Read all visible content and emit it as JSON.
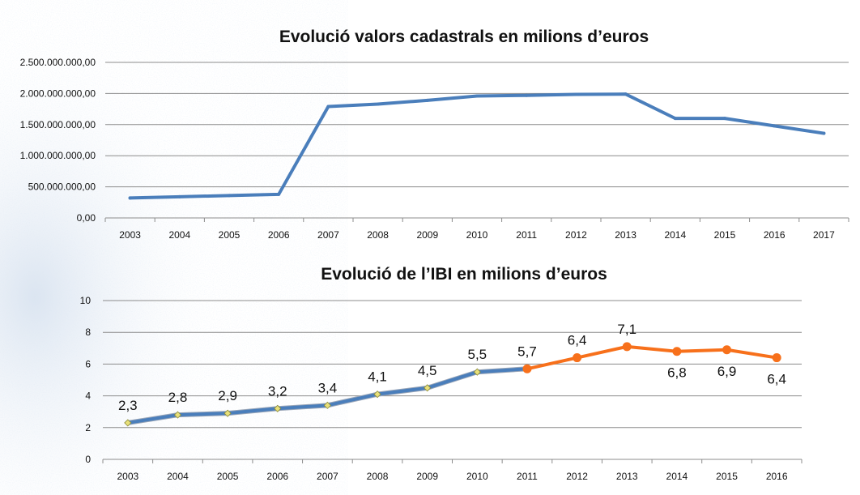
{
  "colors": {
    "series_blue": "#4A7EBB",
    "series_orange": "#F7701B",
    "marker_yellow": "#E8E07A",
    "gridline": "#8C8C8C",
    "background_tint": "#D6E3F1"
  },
  "chart_data": [
    {
      "type": "line",
      "title": "Evolució valors cadastrals en milions d’euros",
      "xlabel": "",
      "ylabel": "",
      "categories": [
        "2003",
        "2004",
        "2005",
        "2006",
        "2007",
        "2008",
        "2009",
        "2010",
        "2011",
        "2012",
        "2013",
        "2014",
        "2015",
        "2016",
        "2017"
      ],
      "series": [
        {
          "name": "Valors cadastrals",
          "color": "#4A7EBB",
          "values": [
            320000000,
            340000000,
            360000000,
            380000000,
            1790000000,
            1830000000,
            1890000000,
            1960000000,
            1970000000,
            1985000000,
            1990000000,
            1600000000,
            1600000000,
            1480000000,
            1360000000
          ]
        }
      ],
      "ylim": [
        0,
        2500000000
      ],
      "yticks": [
        0,
        500000000,
        1000000000,
        1500000000,
        2000000000,
        2500000000
      ],
      "ytick_labels": [
        "0,00",
        "500.000.000,00",
        "1.000.000.000,00",
        "1.500.000.000,00",
        "2.000.000.000,00",
        "2.500.000.000,00"
      ],
      "grid": true,
      "legend": "none"
    },
    {
      "type": "line",
      "title": "Evolució de l’IBI en milions d’euros",
      "xlabel": "",
      "ylabel": "",
      "categories": [
        "2003",
        "2004",
        "2005",
        "2006",
        "2007",
        "2008",
        "2009",
        "2010",
        "2011",
        "2012",
        "2013",
        "2014",
        "2015",
        "2016"
      ],
      "series": [
        {
          "name": "IBI",
          "values": [
            2.3,
            2.8,
            2.9,
            3.2,
            3.4,
            4.1,
            4.5,
            5.5,
            5.7,
            6.4,
            7.1,
            6.8,
            6.9,
            6.4
          ],
          "labels": [
            "2,3",
            "2,8",
            "2,9",
            "3,2",
            "3,4",
            "4,1",
            "4,5",
            "5,5",
            "5,7",
            "6,4",
            "7,1",
            "6,8",
            "6,9",
            "6,4"
          ],
          "label_positions": [
            "above",
            "above",
            "above",
            "above",
            "above",
            "above",
            "above",
            "above",
            "above",
            "above",
            "above",
            "below",
            "below",
            "below"
          ],
          "segments": [
            {
              "from": "2003",
              "to": "2011",
              "color": "#4A7EBB",
              "marker": "diamond-yellow"
            },
            {
              "from": "2011",
              "to": "2016",
              "color": "#F7701B",
              "marker": "circle-orange"
            }
          ]
        }
      ],
      "ylim": [
        0,
        10
      ],
      "yticks": [
        0,
        2,
        4,
        6,
        8,
        10
      ],
      "ytick_labels": [
        "0",
        "2",
        "4",
        "6",
        "8",
        "10"
      ],
      "grid": true,
      "legend": "none"
    }
  ]
}
